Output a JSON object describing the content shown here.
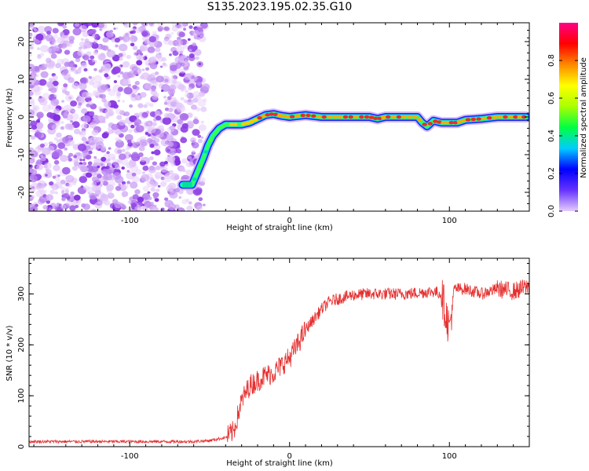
{
  "figure_title": "S135.2023.195.02.35.G10",
  "colors": {
    "snr_line": "#e53030",
    "ridge_peak": "#ee2a2a",
    "noise_low": "#e6ccfb",
    "noise_high": "#7f27e0",
    "axes": "#000000"
  },
  "chart_data": [
    {
      "type": "heatmap",
      "title": "",
      "xlabel": "Height of straight line (km)",
      "ylabel": "Frequency (Hz)",
      "xlim": [
        -163,
        150
      ],
      "ylim": [
        -25,
        25
      ],
      "x_ticks": [
        -100,
        0,
        100
      ],
      "y_ticks": [
        -20,
        -10,
        0,
        10,
        20
      ],
      "x_tick_labels": [
        "-100",
        "0",
        "100"
      ],
      "y_tick_labels": [
        "-20",
        "-10",
        "0",
        "10",
        "20"
      ],
      "ridge": {
        "x": [
          -67,
          -61,
          -58,
          -54,
          -51,
          -48,
          -44,
          -40,
          -35,
          -30,
          -25,
          -20,
          -15,
          -10,
          -5,
          0,
          10,
          20,
          30,
          40,
          50,
          55,
          60,
          70,
          80,
          83,
          86,
          90,
          95,
          100,
          105,
          110,
          120,
          130,
          140,
          148
        ],
        "y": [
          -18,
          -18,
          -15,
          -11,
          -7.5,
          -5,
          -3,
          -2,
          -2,
          -2,
          -1.5,
          -0.5,
          0.5,
          0.8,
          0.3,
          0,
          0.5,
          0,
          0,
          0,
          0,
          -0.5,
          0,
          0,
          0,
          -1.5,
          -2.5,
          -1,
          -1.5,
          -1.5,
          -1.5,
          -0.8,
          -0.5,
          0,
          0,
          0
        ]
      },
      "noise_region_x": [
        -163,
        -50
      ],
      "colorbar": {
        "label": "Normalized spectral amplitude",
        "range": [
          0,
          1
        ],
        "ticks": [
          0.0,
          0.2,
          0.4,
          0.6,
          0.8
        ],
        "tick_labels": [
          "0.0",
          "0.2",
          "0.4",
          "0.6",
          "0.8"
        ],
        "colormap": [
          "#e6ccfb",
          "#6633ff",
          "#0000ff",
          "#00ccff",
          "#00ff44",
          "#aaff00",
          "#ffff00",
          "#ff8800",
          "#ff0000",
          "#ff0088"
        ]
      }
    },
    {
      "type": "line",
      "title": "",
      "xlabel": "Height of straight line (km)",
      "ylabel": "SNR (10 * v/v)",
      "xlim": [
        -163,
        150
      ],
      "ylim": [
        0,
        370
      ],
      "x_ticks": [
        -100,
        0,
        100
      ],
      "y_ticks": [
        0,
        100,
        200,
        300
      ],
      "x_tick_labels": [
        "-100",
        "0",
        "100"
      ],
      "y_tick_labels": [
        "0",
        "100",
        "200",
        "300"
      ],
      "series": [
        {
          "x": [
            -163,
            -140,
            -120,
            -100,
            -80,
            -60,
            -50,
            -40,
            -35,
            -30,
            -25,
            -20,
            -15,
            -10,
            -5,
            0,
            5,
            10,
            15,
            20,
            25,
            30,
            40,
            50,
            60,
            70,
            80,
            90,
            95,
            98,
            100,
            103,
            110,
            120,
            130,
            140,
            150
          ],
          "y": [
            10,
            10,
            10,
            10,
            10,
            10,
            12,
            18,
            30,
            90,
            120,
            130,
            140,
            145,
            160,
            175,
            200,
            230,
            250,
            270,
            285,
            290,
            298,
            300,
            300,
            300,
            302,
            305,
            300,
            260,
            230,
            310,
            310,
            300,
            310,
            305,
            315
          ]
        }
      ]
    }
  ]
}
